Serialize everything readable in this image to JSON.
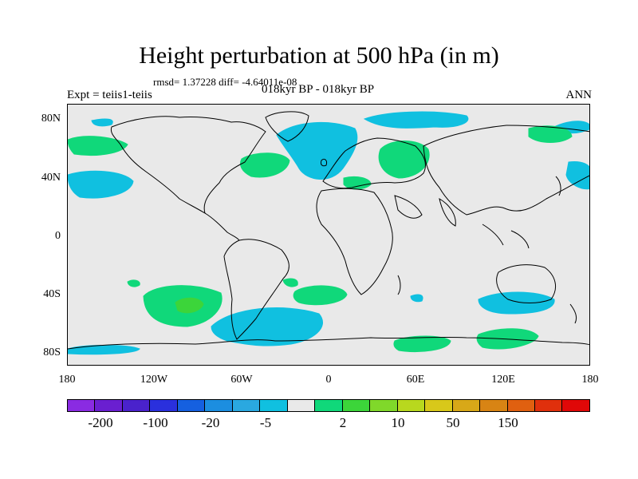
{
  "header": {
    "title": "Height perturbation at 500 hPa (in m)",
    "stats": "rmsd= 1.37228 diff= -4.64011e-08",
    "subtitle": "018kyr BP - 018kyr BP",
    "experiment": "Expt = teiis1-teiis",
    "season": "ANN"
  },
  "map": {
    "background_color": "#e9e9e9",
    "lat_labels": [
      "80N",
      "40N",
      "0",
      "40S",
      "80S"
    ],
    "lon_labels": [
      "180",
      "120W",
      "60W",
      "0",
      "60E",
      "120E",
      "180"
    ]
  },
  "colorbar": {
    "colors": [
      "#8a2be2",
      "#6a1fd0",
      "#4a22cc",
      "#2a30dd",
      "#1560e0",
      "#1c8ee0",
      "#2aa8e0",
      "#10c0e0",
      "#e9e9e9",
      "#10d87a",
      "#3cd53a",
      "#80d82a",
      "#b8d81e",
      "#d8c81a",
      "#d8a818",
      "#d88414",
      "#e06010",
      "#e0300c",
      "#e00808"
    ],
    "labels": [
      "-200",
      "-100",
      "-20",
      "-5",
      "2",
      "10",
      "50",
      "150"
    ],
    "label_positions_note": ""
  },
  "anomaly_colors": {
    "negative": "#10c0e0",
    "positive": "#10d87a",
    "strong_positive": "#3cd53a"
  }
}
